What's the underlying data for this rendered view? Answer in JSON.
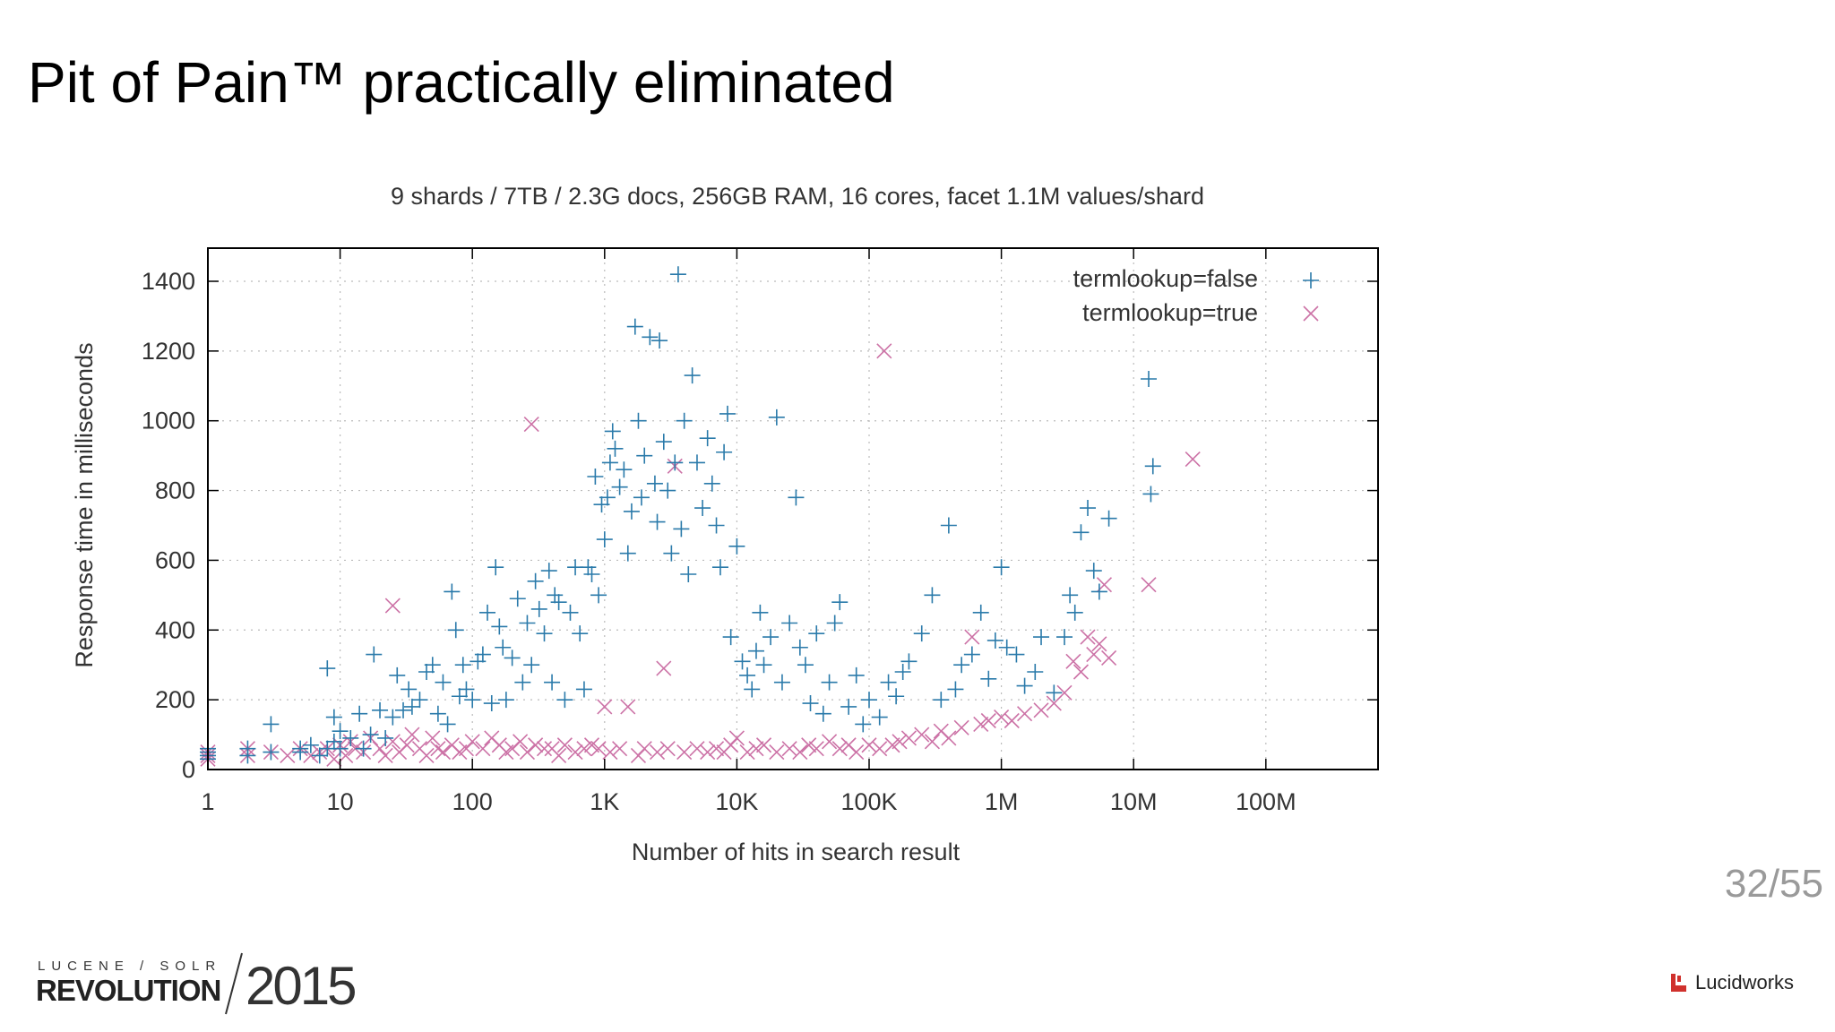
{
  "slide": {
    "title": "Pit of Pain™ practically eliminated",
    "page": "32/55",
    "conference_top": "LUCENE / SOLR",
    "conference_main": "REVOLUTION",
    "conference_year": "2015",
    "vendor": "Lucidworks"
  },
  "colors": {
    "series_false": "#2a7aaa",
    "series_true": "#cc72a6",
    "grid": "#bbbbbb",
    "axis_text": "#333333"
  },
  "chart_data": {
    "type": "scatter",
    "title": "9 shards / 7TB / 2.3G docs, 256GB RAM, 16 cores, facet 1.1M values/shard",
    "xlabel": "Number of hits in search result",
    "ylabel": "Response time in milliseconds",
    "xscale": "log",
    "xlim": [
      1,
      500000000
    ],
    "ylim": [
      0,
      1500
    ],
    "xticks": [
      {
        "value": 1,
        "label": "1"
      },
      {
        "value": 10,
        "label": "10"
      },
      {
        "value": 100,
        "label": "100"
      },
      {
        "value": 1000,
        "label": "1K"
      },
      {
        "value": 10000,
        "label": "10K"
      },
      {
        "value": 100000,
        "label": "100K"
      },
      {
        "value": 1000000,
        "label": "1M"
      },
      {
        "value": 10000000,
        "label": "10M"
      },
      {
        "value": 100000000,
        "label": "100M"
      }
    ],
    "yticks": [
      0,
      200,
      400,
      600,
      800,
      1000,
      1200,
      1400
    ],
    "grid": true,
    "legend_position": "top-right",
    "series": [
      {
        "name": "termlookup=false",
        "marker": "plus",
        "points": [
          [
            1,
            40
          ],
          [
            1,
            60
          ],
          [
            1,
            50
          ],
          [
            1,
            30
          ],
          [
            2,
            40
          ],
          [
            2,
            60
          ],
          [
            3,
            50
          ],
          [
            3,
            130
          ],
          [
            5,
            60
          ],
          [
            5,
            50
          ],
          [
            6,
            70
          ],
          [
            7,
            40
          ],
          [
            8,
            290
          ],
          [
            8,
            60
          ],
          [
            9,
            80
          ],
          [
            9,
            150
          ],
          [
            10,
            110
          ],
          [
            10,
            60
          ],
          [
            12,
            90
          ],
          [
            14,
            160
          ],
          [
            15,
            60
          ],
          [
            17,
            100
          ],
          [
            18,
            330
          ],
          [
            20,
            170
          ],
          [
            22,
            90
          ],
          [
            25,
            150
          ],
          [
            27,
            270
          ],
          [
            30,
            170
          ],
          [
            33,
            230
          ],
          [
            35,
            180
          ],
          [
            40,
            200
          ],
          [
            45,
            280
          ],
          [
            50,
            300
          ],
          [
            55,
            160
          ],
          [
            60,
            250
          ],
          [
            65,
            130
          ],
          [
            70,
            510
          ],
          [
            75,
            400
          ],
          [
            80,
            210
          ],
          [
            85,
            300
          ],
          [
            90,
            230
          ],
          [
            100,
            200
          ],
          [
            110,
            310
          ],
          [
            120,
            330
          ],
          [
            130,
            450
          ],
          [
            140,
            190
          ],
          [
            150,
            580
          ],
          [
            160,
            410
          ],
          [
            170,
            350
          ],
          [
            180,
            200
          ],
          [
            200,
            320
          ],
          [
            220,
            490
          ],
          [
            240,
            250
          ],
          [
            260,
            420
          ],
          [
            280,
            300
          ],
          [
            300,
            540
          ],
          [
            320,
            460
          ],
          [
            350,
            390
          ],
          [
            380,
            570
          ],
          [
            400,
            250
          ],
          [
            420,
            500
          ],
          [
            450,
            480
          ],
          [
            500,
            200
          ],
          [
            550,
            450
          ],
          [
            600,
            580
          ],
          [
            650,
            390
          ],
          [
            700,
            230
          ],
          [
            750,
            580
          ],
          [
            800,
            560
          ],
          [
            850,
            840
          ],
          [
            900,
            500
          ],
          [
            950,
            760
          ],
          [
            1000,
            660
          ],
          [
            1050,
            780
          ],
          [
            1100,
            880
          ],
          [
            1150,
            970
          ],
          [
            1200,
            920
          ],
          [
            1300,
            810
          ],
          [
            1400,
            860
          ],
          [
            1500,
            620
          ],
          [
            1600,
            740
          ],
          [
            1700,
            1270
          ],
          [
            1800,
            1000
          ],
          [
            1900,
            780
          ],
          [
            2000,
            900
          ],
          [
            2200,
            1240
          ],
          [
            2400,
            820
          ],
          [
            2500,
            710
          ],
          [
            2600,
            1230
          ],
          [
            2800,
            940
          ],
          [
            3000,
            800
          ],
          [
            3200,
            620
          ],
          [
            3400,
            880
          ],
          [
            3600,
            1420
          ],
          [
            3800,
            690
          ],
          [
            4000,
            1000
          ],
          [
            4300,
            560
          ],
          [
            4600,
            1130
          ],
          [
            5000,
            880
          ],
          [
            5500,
            750
          ],
          [
            6000,
            950
          ],
          [
            6500,
            820
          ],
          [
            7000,
            700
          ],
          [
            7500,
            580
          ],
          [
            8000,
            910
          ],
          [
            8500,
            1020
          ],
          [
            9000,
            380
          ],
          [
            10000,
            640
          ],
          [
            11000,
            310
          ],
          [
            12000,
            270
          ],
          [
            13000,
            230
          ],
          [
            14000,
            340
          ],
          [
            15000,
            450
          ],
          [
            16000,
            300
          ],
          [
            18000,
            380
          ],
          [
            20000,
            1010
          ],
          [
            22000,
            250
          ],
          [
            25000,
            420
          ],
          [
            28000,
            780
          ],
          [
            30000,
            350
          ],
          [
            33000,
            300
          ],
          [
            36000,
            190
          ],
          [
            40000,
            390
          ],
          [
            45000,
            160
          ],
          [
            50000,
            250
          ],
          [
            55000,
            420
          ],
          [
            60000,
            480
          ],
          [
            70000,
            180
          ],
          [
            80000,
            270
          ],
          [
            90000,
            130
          ],
          [
            100000,
            200
          ],
          [
            120000,
            150
          ],
          [
            140000,
            250
          ],
          [
            160000,
            210
          ],
          [
            180000,
            280
          ],
          [
            200000,
            310
          ],
          [
            250000,
            390
          ],
          [
            300000,
            500
          ],
          [
            350000,
            200
          ],
          [
            400000,
            700
          ],
          [
            450000,
            230
          ],
          [
            500000,
            300
          ],
          [
            600000,
            330
          ],
          [
            700000,
            450
          ],
          [
            800000,
            260
          ],
          [
            900000,
            370
          ],
          [
            1000000,
            580
          ],
          [
            1100000,
            350
          ],
          [
            1300000,
            330
          ],
          [
            1500000,
            240
          ],
          [
            1800000,
            280
          ],
          [
            2000000,
            380
          ],
          [
            2500000,
            220
          ],
          [
            3000000,
            380
          ],
          [
            3300000,
            500
          ],
          [
            3600000,
            450
          ],
          [
            4000000,
            680
          ],
          [
            4500000,
            750
          ],
          [
            5000000,
            570
          ],
          [
            5500000,
            510
          ],
          [
            6500000,
            720
          ],
          [
            13000000,
            1120
          ],
          [
            14000000,
            870
          ],
          [
            13500000,
            790
          ]
        ]
      },
      {
        "name": "termlookup=true",
        "marker": "cross",
        "points": [
          [
            1,
            30
          ],
          [
            1,
            50
          ],
          [
            1,
            40
          ],
          [
            2,
            40
          ],
          [
            2,
            60
          ],
          [
            3,
            50
          ],
          [
            4,
            40
          ],
          [
            5,
            60
          ],
          [
            6,
            40
          ],
          [
            7,
            50
          ],
          [
            8,
            60
          ],
          [
            9,
            30
          ],
          [
            10,
            70
          ],
          [
            11,
            40
          ],
          [
            12,
            80
          ],
          [
            13,
            60
          ],
          [
            15,
            50
          ],
          [
            17,
            90
          ],
          [
            20,
            60
          ],
          [
            22,
            40
          ],
          [
            25,
            80
          ],
          [
            25,
            470
          ],
          [
            28,
            50
          ],
          [
            32,
            70
          ],
          [
            35,
            100
          ],
          [
            40,
            60
          ],
          [
            45,
            40
          ],
          [
            50,
            90
          ],
          [
            55,
            60
          ],
          [
            60,
            50
          ],
          [
            70,
            70
          ],
          [
            80,
            50
          ],
          [
            90,
            60
          ],
          [
            100,
            80
          ],
          [
            120,
            60
          ],
          [
            140,
            90
          ],
          [
            160,
            70
          ],
          [
            180,
            50
          ],
          [
            200,
            60
          ],
          [
            230,
            80
          ],
          [
            260,
            50
          ],
          [
            280,
            990
          ],
          [
            300,
            70
          ],
          [
            350,
            60
          ],
          [
            400,
            60
          ],
          [
            450,
            40
          ],
          [
            500,
            70
          ],
          [
            600,
            50
          ],
          [
            700,
            60
          ],
          [
            800,
            70
          ],
          [
            900,
            60
          ],
          [
            1000,
            180
          ],
          [
            1100,
            50
          ],
          [
            1300,
            60
          ],
          [
            1500,
            180
          ],
          [
            1800,
            40
          ],
          [
            2000,
            60
          ],
          [
            2500,
            50
          ],
          [
            2800,
            290
          ],
          [
            3000,
            60
          ],
          [
            3400,
            870
          ],
          [
            4000,
            50
          ],
          [
            5000,
            60
          ],
          [
            6000,
            50
          ],
          [
            7000,
            60
          ],
          [
            8000,
            50
          ],
          [
            9000,
            70
          ],
          [
            10000,
            90
          ],
          [
            12000,
            50
          ],
          [
            14000,
            60
          ],
          [
            16000,
            70
          ],
          [
            20000,
            50
          ],
          [
            25000,
            60
          ],
          [
            30000,
            50
          ],
          [
            35000,
            70
          ],
          [
            40000,
            60
          ],
          [
            50000,
            80
          ],
          [
            60000,
            60
          ],
          [
            70000,
            70
          ],
          [
            80000,
            50
          ],
          [
            100000,
            70
          ],
          [
            120000,
            60
          ],
          [
            130000,
            1200
          ],
          [
            150000,
            70
          ],
          [
            170000,
            80
          ],
          [
            200000,
            90
          ],
          [
            250000,
            100
          ],
          [
            300000,
            80
          ],
          [
            350000,
            110
          ],
          [
            400000,
            90
          ],
          [
            500000,
            120
          ],
          [
            600000,
            380
          ],
          [
            700000,
            130
          ],
          [
            800000,
            140
          ],
          [
            1000000,
            150
          ],
          [
            1200000,
            140
          ],
          [
            1500000,
            160
          ],
          [
            2000000,
            170
          ],
          [
            2500000,
            190
          ],
          [
            3000000,
            220
          ],
          [
            3500000,
            310
          ],
          [
            4000000,
            280
          ],
          [
            4500000,
            380
          ],
          [
            5000000,
            330
          ],
          [
            5500000,
            360
          ],
          [
            6000000,
            530
          ],
          [
            6500000,
            320
          ],
          [
            13000000,
            530
          ],
          [
            28000000,
            890
          ]
        ]
      }
    ]
  }
}
